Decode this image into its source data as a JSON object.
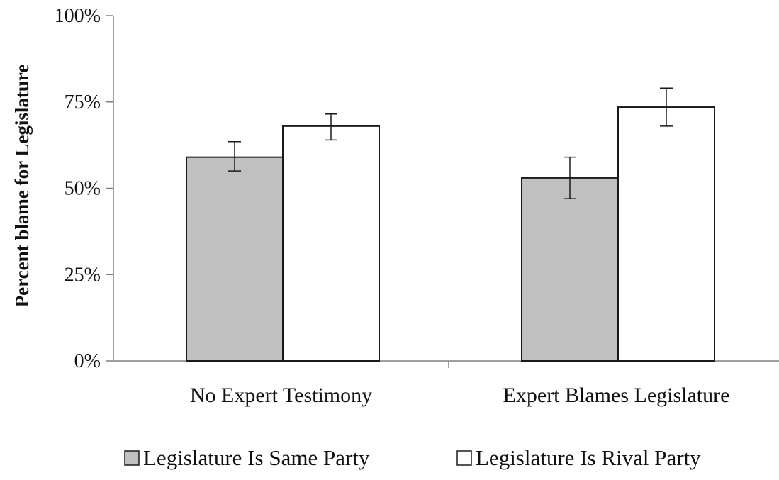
{
  "chart_data": {
    "type": "bar",
    "title": "",
    "xlabel": "",
    "ylabel": "Percent blame for Legislature",
    "ylim": [
      0,
      100
    ],
    "yticks": [
      0,
      25,
      50,
      75,
      100
    ],
    "ytick_labels": [
      "0%",
      "25%",
      "50%",
      "75%",
      "100%"
    ],
    "categories": [
      "No Expert Testimony",
      "Expert Blames Legislature"
    ],
    "series": [
      {
        "name": "Legislature Is Same Party",
        "values": [
          59,
          53
        ],
        "error_low": [
          55,
          47
        ],
        "error_high": [
          63.5,
          59
        ],
        "color": "#c0c0c0"
      },
      {
        "name": "Legislature Is Rival Party",
        "values": [
          68,
          73.5
        ],
        "error_low": [
          64,
          68
        ],
        "error_high": [
          71.5,
          79
        ],
        "color": "#ffffff"
      }
    ],
    "grid": false,
    "legend_position": "bottom"
  }
}
